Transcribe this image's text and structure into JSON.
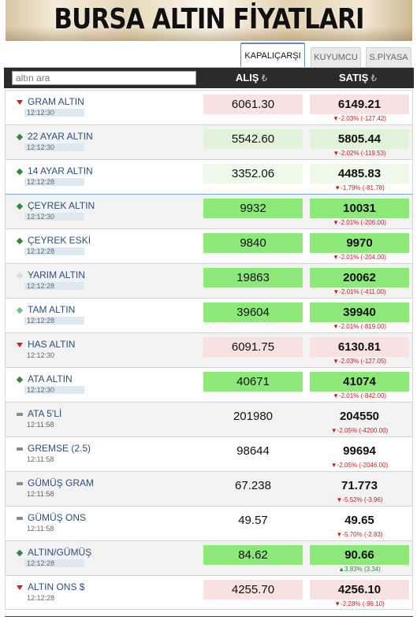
{
  "banner": {
    "title": "BURSA ALTIN FİYATLARI"
  },
  "tabs": [
    {
      "label": "KAPALIÇARŞI",
      "active": true
    },
    {
      "label": "KUYUMCU",
      "active": false
    },
    {
      "label": "S.PİYASA",
      "active": false
    }
  ],
  "table": {
    "search_placeholder": "altın ara",
    "buy_header": "ALIŞ",
    "sell_header": "SATIŞ",
    "currency_symbol": "₺",
    "rows": [
      {
        "name": "GRAM ALTIN",
        "time": "12:12:30",
        "buy": "6061.30",
        "sell": "6149.21",
        "change": "▼-2.03% (-127.42)",
        "trend": "down",
        "box": "red"
      },
      {
        "name": "22 AYAR ALTIN",
        "time": "12:12:30",
        "buy": "5542.60",
        "sell": "5805.44",
        "change": "▼-2.02% (-119.53)",
        "trend": "up",
        "box": "lightgreen"
      },
      {
        "name": "14 AYAR ALTIN",
        "time": "12:12:28",
        "buy": "3352.06",
        "sell": "4485.83",
        "change": "▼-1.79% (-81.78)",
        "trend": "up",
        "box": "palegreen"
      },
      {
        "name": "ÇEYREK ALTIN",
        "time": "12:12:30",
        "buy": "9932",
        "sell": "10031",
        "change": "▼-2.01% (-206.00)",
        "trend": "up",
        "box": "green"
      },
      {
        "name": "ÇEYREK ESKİ",
        "time": "12:12:28",
        "buy": "9840",
        "sell": "9970",
        "change": "▼-2.01% (-204.00)",
        "trend": "up",
        "box": "green"
      },
      {
        "name": "YARIM ALTIN",
        "time": "12:12:28",
        "buy": "19863",
        "sell": "20062",
        "change": "▼-2.01% (-411.00)",
        "trend": "faint",
        "box": "green"
      },
      {
        "name": "TAM ALTIN",
        "time": "12:12:28",
        "buy": "39604",
        "sell": "39940",
        "change": "▼-2.01% (-819.00)",
        "trend": "upl",
        "box": "green"
      },
      {
        "name": "HAS ALTIN",
        "time": "12:12:30",
        "buy": "6091.75",
        "sell": "6130.81",
        "change": "▼-2.03% (-127.05)",
        "trend": "down",
        "box": "red"
      },
      {
        "name": "ATA ALTIN",
        "time": "12:12:30",
        "buy": "40671",
        "sell": "41074",
        "change": "▼-2.01% (-842.00)",
        "trend": "up",
        "box": "green"
      },
      {
        "name": "ATA 5'Lİ",
        "time": "12:11:58",
        "buy": "201980",
        "sell": "204550",
        "change": "▼-2.05% (-4200.00)",
        "trend": "flat",
        "box": "none"
      },
      {
        "name": "GREMSE (2.5)",
        "time": "12:11:58",
        "buy": "98644",
        "sell": "99694",
        "change": "▼-2.05% (-2046.00)",
        "trend": "flat",
        "box": "none"
      },
      {
        "name": "GÜMÜŞ GRAM",
        "time": "12:11:58",
        "buy": "67.238",
        "sell": "71.773",
        "change": "▼-5.52% (-3.96)",
        "trend": "flat",
        "box": "none"
      },
      {
        "name": "GÜMÜŞ ONS",
        "time": "12:11:58",
        "buy": "49.57",
        "sell": "49.65",
        "change": "▼-5.70% (-2.83)",
        "trend": "flat",
        "box": "none"
      },
      {
        "name": "ALTIN/GÜMÜŞ",
        "time": "12:12:28",
        "buy": "84.62",
        "sell": "90.66",
        "change": "▲3.83% (3.34)",
        "trend": "up",
        "box": "green"
      },
      {
        "name": "ALTIN ONS $",
        "time": "12:12:28",
        "buy": "4255.70",
        "sell": "4256.10",
        "change": "▼-2.28% (-99.10)",
        "trend": "down",
        "box": "red"
      }
    ]
  }
}
